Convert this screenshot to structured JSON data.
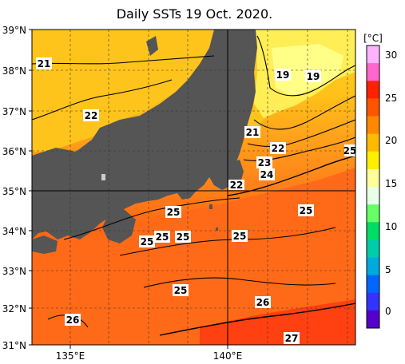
{
  "title": "Daily SSTs 19 Oct. 2020.",
  "lat_labels": [
    "39°N",
    "38°N",
    "37°N",
    "36°N",
    "35°N",
    "34°N",
    "33°N",
    "32°N",
    "31°N"
  ],
  "lon_labels": [
    "135°E",
    "140°E"
  ],
  "colorbar": {
    "unit": "[°C]",
    "ticks": [
      "30",
      "25",
      "20",
      "15",
      "10",
      "5",
      "0"
    ],
    "colors": [
      "#ffb3ff",
      "#ff66cc",
      "#ff2200",
      "#ff5500",
      "#ff8800",
      "#ffbb00",
      "#ffee00",
      "#ffff99",
      "#e8ffe8",
      "#66ff66",
      "#00dd66",
      "#00ccaa",
      "#00aadd",
      "#0066ff",
      "#3333ff",
      "#5500cc"
    ]
  },
  "contour_labels": [
    "21",
    "22",
    "19",
    "19",
    "21",
    "22",
    "23",
    "24",
    "22",
    "25",
    "25",
    "25",
    "25",
    "25",
    "25",
    "25",
    "26",
    "26",
    "27",
    "25"
  ],
  "colors": {
    "land": "#555555",
    "warm": "#ff5a1a",
    "mid": "#ffa020",
    "cool": "#ffdf30",
    "grid": "#333333"
  }
}
